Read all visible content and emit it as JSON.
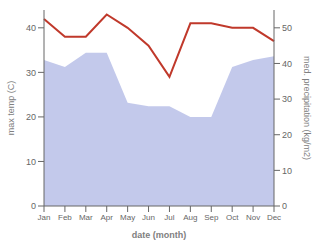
{
  "chart_data": {
    "type": "line",
    "categories": [
      "Jan",
      "Feb",
      "Mar",
      "Apr",
      "May",
      "Jun",
      "Jul",
      "Aug",
      "Sep",
      "Oct",
      "Nov",
      "Dec"
    ],
    "x_label": "date (month)",
    "y_label": "max temp (C)",
    "y2_label": "med. precipitation (kg/m2)",
    "ylim": [
      0,
      44
    ],
    "yticks": [
      0,
      10,
      20,
      30,
      40
    ],
    "y2lim": [
      0,
      55
    ],
    "y2ticks": [
      0,
      10,
      20,
      30,
      40,
      50
    ],
    "grid": false,
    "legend": false,
    "series": [
      {
        "type": "area",
        "axis": "y2",
        "color": "#b8c0e8",
        "values": [
          41,
          39,
          43,
          43,
          29,
          28,
          28,
          25,
          25,
          39,
          41,
          42
        ]
      },
      {
        "type": "line",
        "axis": "y",
        "color": "#c0392b",
        "values": [
          42,
          38,
          38,
          43,
          40,
          36,
          29,
          41,
          41,
          40,
          40,
          37
        ]
      }
    ]
  }
}
